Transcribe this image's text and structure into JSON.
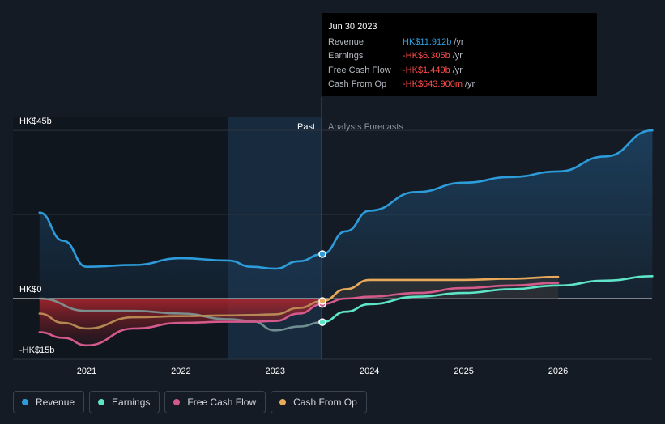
{
  "chart_data": {
    "type": "line",
    "x_ticks": [
      "2021",
      "2022",
      "2023",
      "2024",
      "2025",
      "2026"
    ],
    "y_ticks": [
      "HK$45b",
      "HK$0",
      "-HK$15b"
    ],
    "ylim": [
      -15,
      45
    ],
    "regions": {
      "past_label": "Past",
      "forecast_label": "Analysts Forecasts"
    },
    "series": [
      {
        "name": "Revenue",
        "color": "#2d9cdb",
        "x": [
          2020.5,
          2020.75,
          2021.0,
          2021.5,
          2022.0,
          2022.5,
          2022.75,
          2023.0,
          2023.25,
          2023.5,
          2023.75,
          2024.0,
          2024.5,
          2025.0,
          2025.5,
          2026.0,
          2026.5,
          2027.0
        ],
        "values": [
          23.0,
          15.5,
          8.5,
          9.0,
          10.8,
          10.2,
          8.5,
          8.0,
          10.0,
          11.912,
          18.0,
          23.5,
          28.5,
          31.0,
          32.5,
          34.0,
          38.0,
          45.0
        ]
      },
      {
        "name": "Earnings",
        "color": "#5ee5c8",
        "x": [
          2020.5,
          2021.0,
          2021.5,
          2022.0,
          2022.5,
          2022.75,
          2023.0,
          2023.25,
          2023.5,
          2023.75,
          2024.0,
          2024.5,
          2025.0,
          2025.5,
          2026.0,
          2026.5,
          2027.0
        ],
        "values": [
          0.0,
          -3.3,
          -3.3,
          -4.0,
          -5.5,
          -6.0,
          -8.5,
          -7.5,
          -6.305,
          -3.5,
          -1.5,
          0.5,
          1.5,
          2.5,
          3.5,
          4.8,
          6.0
        ]
      },
      {
        "name": "Free Cash Flow",
        "color": "#d45a8c",
        "x": [
          2020.5,
          2020.75,
          2021.0,
          2021.5,
          2022.0,
          2022.5,
          2022.75,
          2023.0,
          2023.25,
          2023.5,
          2023.75,
          2024.0,
          2024.5,
          2025.0,
          2025.5,
          2026.0
        ],
        "values": [
          -9.0,
          -10.5,
          -12.5,
          -8.0,
          -6.5,
          -6.2,
          -6.2,
          -6.0,
          -4.0,
          -1.449,
          0.0,
          0.5,
          1.5,
          2.8,
          3.5,
          4.2
        ]
      },
      {
        "name": "Cash From Op",
        "color": "#e8a95a",
        "x": [
          2020.5,
          2020.75,
          2021.0,
          2021.5,
          2022.0,
          2022.5,
          2022.75,
          2023.0,
          2023.25,
          2023.5,
          2023.75,
          2024.0,
          2024.5,
          2025.0,
          2025.5,
          2026.0
        ],
        "values": [
          -4.0,
          -6.5,
          -8.0,
          -5.0,
          -4.7,
          -4.5,
          -4.4,
          -4.2,
          -2.5,
          -0.644,
          2.5,
          5.0,
          5.0,
          5.0,
          5.3,
          5.8
        ]
      }
    ]
  },
  "tooltip": {
    "date": "Jun 30 2023",
    "rows": [
      {
        "label": "Revenue",
        "value": "HK$11.912b",
        "unit": "/yr"
      },
      {
        "label": "Earnings",
        "value": "-HK$6.305b",
        "unit": "/yr"
      },
      {
        "label": "Free Cash Flow",
        "value": "-HK$1.449b",
        "unit": "/yr"
      },
      {
        "label": "Cash From Op",
        "value": "-HK$643.900m",
        "unit": "/yr"
      }
    ]
  },
  "legend": [
    {
      "label": "Revenue",
      "color": "#2d9cdb"
    },
    {
      "label": "Earnings",
      "color": "#5ee5c8"
    },
    {
      "label": "Free Cash Flow",
      "color": "#d45a8c"
    },
    {
      "label": "Cash From Op",
      "color": "#e8a95a"
    }
  ]
}
